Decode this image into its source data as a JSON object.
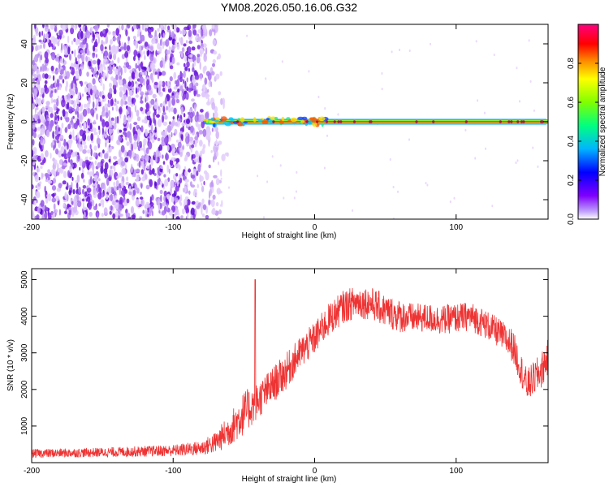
{
  "chart_data": [
    {
      "type": "heatmap",
      "title": "YM08.2026.050.16.06.G32",
      "xlabel": "Height of straight line (km)",
      "ylabel": "Frequency (Hz)",
      "xlim": [
        -200,
        165
      ],
      "ylim": [
        -50,
        50
      ],
      "xticks": [
        -200,
        -100,
        0,
        100
      ],
      "xtick_labels": [
        "-200",
        "-100",
        "0",
        "100"
      ],
      "yticks": [
        40,
        20,
        0,
        -20,
        -40
      ],
      "ytick_labels": [
        "40",
        "20",
        "0",
        "-20",
        "-40"
      ],
      "noise_region_x": [
        -200,
        -70
      ],
      "signal_region_x": [
        -78,
        165
      ],
      "signal_frequency_hz": 0,
      "colorbar": {
        "label": "Normalized spectral amplitude",
        "range": [
          0,
          1
        ],
        "ticks": [
          0.0,
          0.2,
          0.4,
          0.6,
          0.8
        ],
        "tick_labels": [
          "0.0",
          "0.2",
          "0.4",
          "0.6",
          "0.8"
        ],
        "colormap": [
          "#ffffff",
          "#7f00ff",
          "#0000ff",
          "#00b4ff",
          "#00ff80",
          "#80ff00",
          "#ffff00",
          "#ff8000",
          "#ff0000",
          "#ff0080"
        ]
      }
    },
    {
      "type": "line",
      "xlabel": "Height of straight line (km)",
      "ylabel": "SNR (10 * v/v)",
      "xlim": [
        -200,
        165
      ],
      "ylim": [
        0,
        5300
      ],
      "xticks": [
        -200,
        -100,
        0,
        100
      ],
      "xtick_labels": [
        "-200",
        "-100",
        "0",
        "100"
      ],
      "yticks": [
        1000,
        2000,
        3000,
        4000,
        5000
      ],
      "ytick_labels": [
        "1000",
        "2000",
        "3000",
        "4000",
        "5000"
      ],
      "color": "#ee3333",
      "trend": {
        "x": [
          -200,
          -150,
          -100,
          -80,
          -70,
          -60,
          -50,
          -40,
          -30,
          -20,
          -10,
          0,
          10,
          20,
          30,
          40,
          50,
          60,
          70,
          80,
          90,
          100,
          110,
          120,
          130,
          140,
          150,
          160,
          165
        ],
        "y": [
          250,
          280,
          330,
          400,
          550,
          900,
          1350,
          1700,
          2100,
          2500,
          3000,
          3400,
          3900,
          4250,
          4400,
          4350,
          4150,
          4000,
          3950,
          3950,
          3900,
          3950,
          4000,
          3800,
          3550,
          3200,
          2100,
          2500,
          2900
        ],
        "noise_amplitude": [
          120,
          130,
          160,
          200,
          300,
          450,
          600,
          500,
          500,
          500,
          450,
          450,
          450,
          450,
          450,
          450,
          450,
          450,
          400,
          400,
          400,
          400,
          400,
          400,
          400,
          450,
          450,
          500,
          500
        ]
      },
      "spike": {
        "x": -42,
        "y": 5000
      }
    }
  ]
}
